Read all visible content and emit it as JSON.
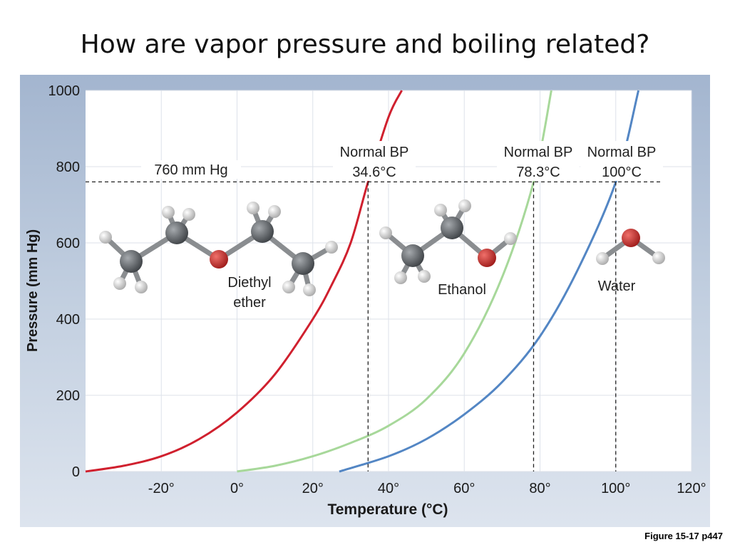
{
  "slide": {
    "title": "How are vapor pressure and boiling related?",
    "caption": "Figure 15-17 p447"
  },
  "chart_data": {
    "type": "line",
    "title": "",
    "xlabel": "Temperature (°C)",
    "ylabel": "Pressure (mm Hg)",
    "xlim": [
      -40,
      120
    ],
    "ylim": [
      0,
      1000
    ],
    "x_ticks": [
      -20,
      0,
      20,
      40,
      60,
      80,
      100,
      120
    ],
    "x_tick_labels": [
      "-20°",
      "0°",
      "20°",
      "40°",
      "60°",
      "80°",
      "100°",
      "120°"
    ],
    "y_ticks": [
      0,
      200,
      400,
      600,
      800,
      1000
    ],
    "y_tick_labels": [
      "0",
      "200",
      "400",
      "600",
      "800",
      "1000"
    ],
    "grid": true,
    "reference_line": {
      "y": 760,
      "label": "760 mm Hg"
    },
    "series": [
      {
        "name": "Diethyl ether",
        "color": "#d0202e",
        "x": [
          -40,
          -30,
          -20,
          -10,
          0,
          10,
          20,
          25,
          30,
          34.6,
          40,
          43.5
        ],
        "y": [
          0,
          15,
          40,
          85,
          155,
          255,
          400,
          490,
          600,
          760,
          930,
          1000
        ],
        "boiling_point": {
          "x": 34.6,
          "label_line1": "Normal BP",
          "label_line2": "34.6°C"
        },
        "molecule_label": [
          "Diethyl",
          "ether"
        ]
      },
      {
        "name": "Ethanol",
        "color": "#a7d89a",
        "x": [
          0,
          10,
          20,
          30,
          40,
          50,
          60,
          70,
          78.3,
          83
        ],
        "y": [
          0,
          15,
          40,
          75,
          120,
          190,
          310,
          510,
          760,
          1000
        ],
        "boiling_point": {
          "x": 78.3,
          "label_line1": "Normal BP",
          "label_line2": "78.3°C"
        },
        "molecule_label": [
          "Ethanol"
        ]
      },
      {
        "name": "Water",
        "color": "#5386c4",
        "x": [
          27,
          40,
          50,
          60,
          70,
          80,
          90,
          100,
          106
        ],
        "y": [
          0,
          40,
          85,
          150,
          235,
          355,
          530,
          760,
          1000
        ],
        "boiling_point": {
          "x": 100,
          "label_line1": "Normal BP",
          "label_line2": "100°C"
        },
        "molecule_label": [
          "Water"
        ]
      }
    ]
  },
  "colors": {
    "plot_background": "#ffffff",
    "grid": "#dde2ea",
    "carbon": "#62666a",
    "hydrogen": "#e6e6e6",
    "oxygen": "#c8302e"
  }
}
